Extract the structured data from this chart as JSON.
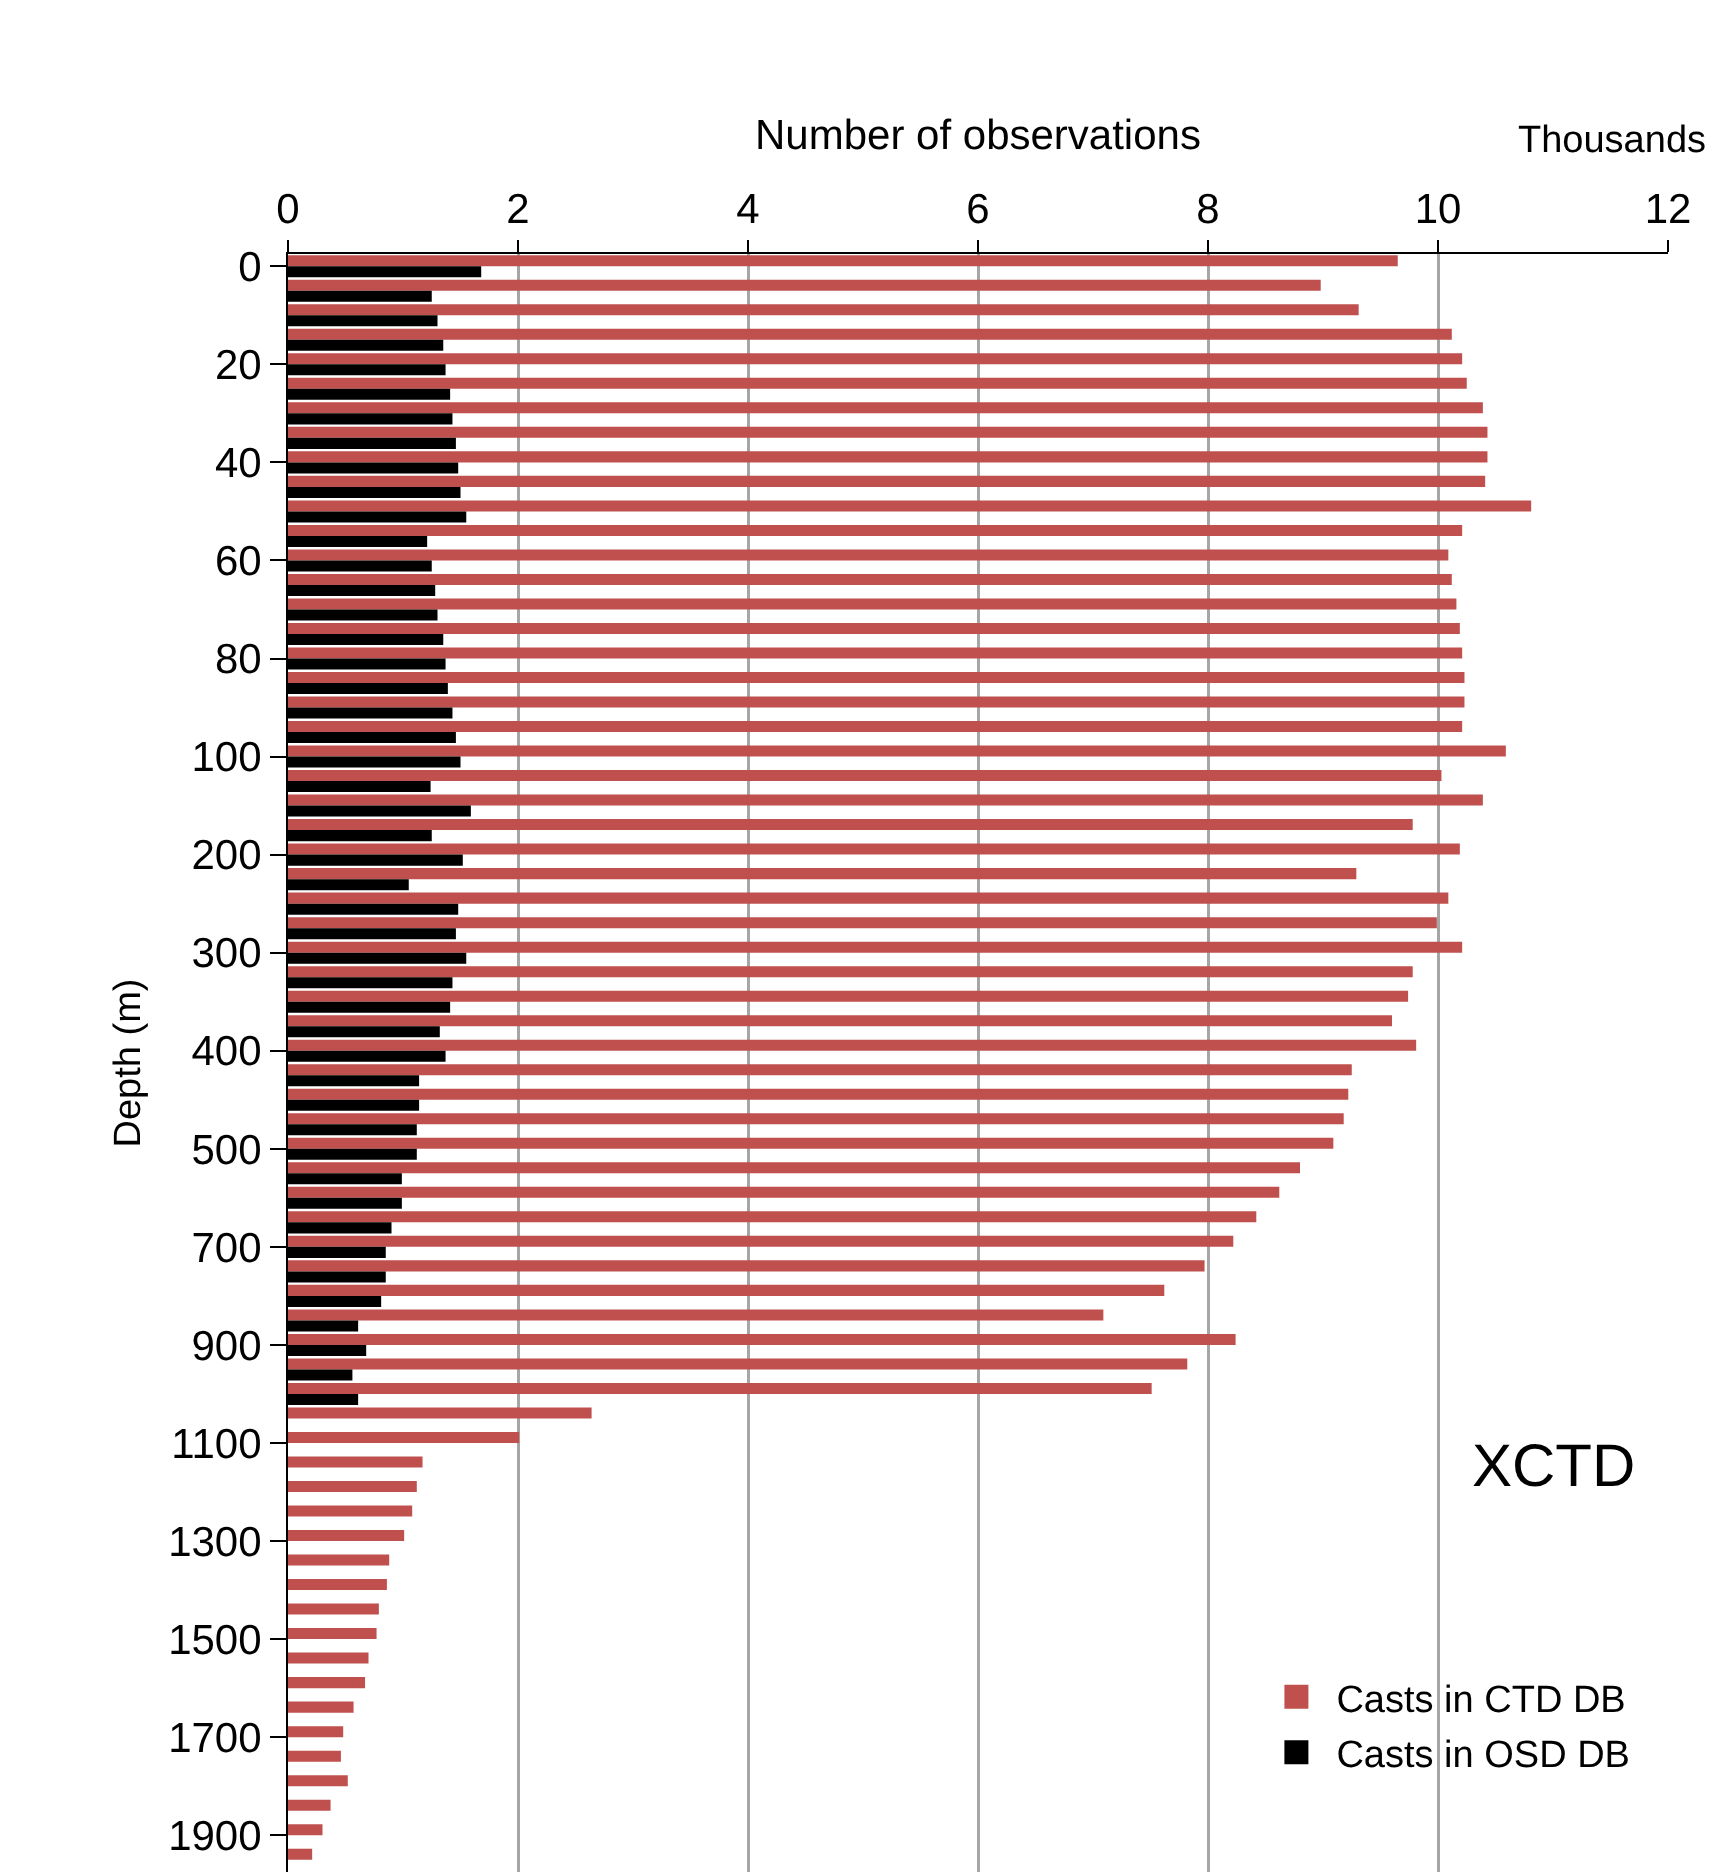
{
  "chart_data": {
    "type": "bar",
    "orientation": "horizontal",
    "xlabel": "Number of observations",
    "ylabel": "Depth (m)",
    "categories": [
      "0",
      null,
      null,
      null,
      "20",
      null,
      null,
      null,
      "40",
      null,
      null,
      null,
      "60",
      null,
      null,
      null,
      "80",
      null,
      null,
      null,
      "100",
      null,
      null,
      null,
      "200",
      null,
      null,
      null,
      "300",
      null,
      null,
      null,
      "400",
      null,
      null,
      null,
      "500",
      null,
      null,
      null,
      "700",
      null,
      null,
      null,
      "900",
      null,
      null,
      null,
      "1100",
      null,
      null,
      null,
      "1300",
      null,
      null,
      null,
      "1500",
      null,
      null,
      null,
      "1700",
      null,
      null,
      null,
      "1900",
      null
    ],
    "series": [
      {
        "name": "Casts in CTD DB",
        "color": "#c0504d",
        "values": [
          9.65,
          8.98,
          9.31,
          10.12,
          10.21,
          10.25,
          10.39,
          10.43,
          10.43,
          10.41,
          10.81,
          10.21,
          10.09,
          10.12,
          10.16,
          10.19,
          10.21,
          10.23,
          10.23,
          10.21,
          10.59,
          10.03,
          10.39,
          9.78,
          10.19,
          9.29,
          10.09,
          9.99,
          10.21,
          9.78,
          9.74,
          9.6,
          9.81,
          9.25,
          9.22,
          9.18,
          9.09,
          8.8,
          8.62,
          8.42,
          8.22,
          7.97,
          7.62,
          7.09,
          8.24,
          7.82,
          7.51,
          2.64,
          2.01,
          1.17,
          1.12,
          1.08,
          1.01,
          0.88,
          0.86,
          0.79,
          0.77,
          0.7,
          0.67,
          0.57,
          0.48,
          0.46,
          0.52,
          0.37,
          0.3,
          0.21
        ]
      },
      {
        "name": "Casts in OSD DB",
        "color": "#000000",
        "values": [
          1.68,
          1.25,
          1.3,
          1.35,
          1.37,
          1.41,
          1.43,
          1.46,
          1.48,
          1.5,
          1.55,
          1.21,
          1.25,
          1.28,
          1.3,
          1.35,
          1.37,
          1.39,
          1.43,
          1.46,
          1.5,
          1.24,
          1.59,
          1.25,
          1.52,
          1.05,
          1.48,
          1.46,
          1.55,
          1.43,
          1.41,
          1.32,
          1.37,
          1.14,
          1.14,
          1.12,
          1.12,
          0.99,
          0.99,
          0.9,
          0.85,
          0.85,
          0.81,
          0.61,
          0.68,
          0.56,
          0.61,
          null,
          null,
          null,
          null,
          null,
          null,
          null,
          null,
          null,
          null,
          null,
          null,
          null,
          null,
          null,
          null,
          null,
          null,
          null
        ]
      }
    ],
    "xlim": [
      0,
      12
    ],
    "xticks": [
      0,
      2,
      4,
      6,
      8,
      10,
      12
    ],
    "grid": "x",
    "legend": "bottom right",
    "annotations": [
      "Thousands",
      "XCTD"
    ]
  }
}
